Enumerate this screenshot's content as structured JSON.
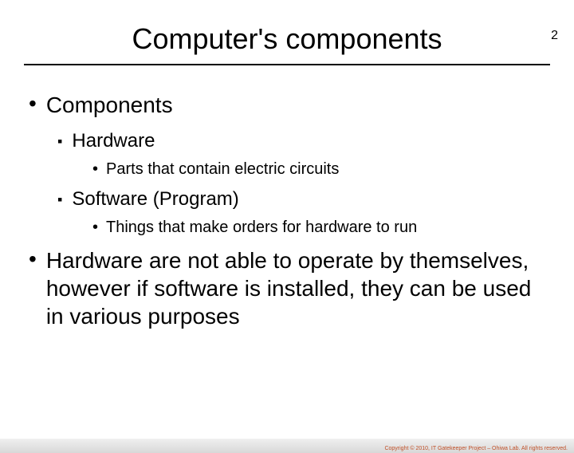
{
  "pageNumber": "2",
  "title": "Computer's components",
  "bullets": {
    "l1a": "Components",
    "l2a": "Hardware",
    "l3a": "Parts that contain electric circuits",
    "l2b": "Software (Program)",
    "l3b": "Things that make orders for hardware to run",
    "l1b": "Hardware are not able to operate by themselves, however if software is installed, they can be used in various purposes"
  },
  "footer": "Copyright © 2010, IT Gatekeeper Project – Ohiwa Lab. All rights reserved."
}
